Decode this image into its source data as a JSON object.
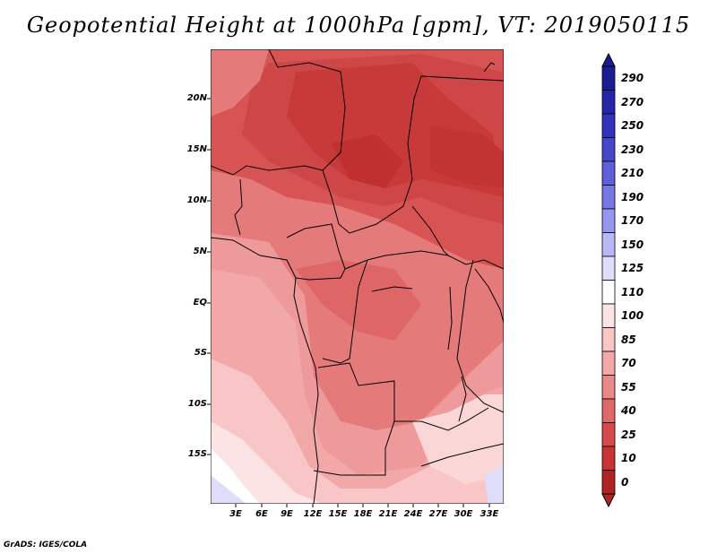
{
  "title": "Geopotential Height at 1000hPa [gpm], VT: 2019050115",
  "credit": "GrADS: IGES/COLA",
  "lat_labels": [
    "20N",
    "15N",
    "10N",
    "5N",
    "EQ",
    "5S",
    "10S",
    "15S"
  ],
  "lon_labels": [
    "3E",
    "6E",
    "9E",
    "12E",
    "15E",
    "18E",
    "21E",
    "24E",
    "27E",
    "30E",
    "33E"
  ],
  "colorbar": {
    "labels": [
      "290",
      "270",
      "250",
      "230",
      "210",
      "190",
      "170",
      "150",
      "125",
      "110",
      "100",
      "85",
      "70",
      "55",
      "40",
      "25",
      "10",
      "0"
    ],
    "colors": [
      "#1c1c91",
      "#2525a8",
      "#3131bd",
      "#4646cb",
      "#5f5fd8",
      "#7878e4",
      "#9696ee",
      "#b8b8f5",
      "#dedefb",
      "#ffffff",
      "#fde4e4",
      "#f8c6c6",
      "#f2a8a8",
      "#e98888",
      "#df6868",
      "#d64a4a",
      "#c83434",
      "#b02424"
    ]
  },
  "map": {
    "region": "Central Africa",
    "lon_range": [
      0,
      35
    ],
    "lat_range": [
      -20,
      24
    ],
    "variable": "Geopotential Height at 1000hPa",
    "units": "gpm"
  }
}
